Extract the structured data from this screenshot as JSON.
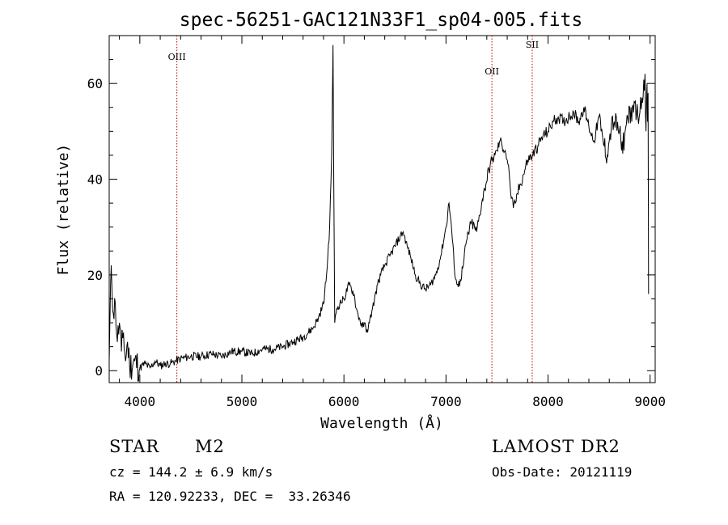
{
  "chart_data": {
    "type": "line",
    "title": "spec-56251-GAC121N33F1_sp04-005.fits",
    "xlabel": "Wavelength (Å)",
    "ylabel": "Flux (relative)",
    "xlim": [
      3700,
      9050
    ],
    "ylim": [
      -2.5,
      70
    ],
    "x_ticks": [
      4000,
      5000,
      6000,
      7000,
      8000,
      9000
    ],
    "y_ticks": [
      0,
      20,
      40,
      60
    ],
    "grid": false,
    "series": [
      {
        "x": [
          3700,
          3720,
          3740,
          3760,
          3780,
          3800,
          3820,
          3840,
          3860,
          3880,
          3900,
          3950,
          4000,
          4050,
          4100,
          4150,
          4200,
          4250,
          4300,
          4350,
          4400,
          4500,
          4600,
          4700,
          4800,
          4900,
          5000,
          5100,
          5200,
          5300,
          5400,
          5500,
          5600,
          5700,
          5750,
          5800,
          5830,
          5860,
          5880,
          5893,
          5900,
          5910,
          5930,
          5960,
          6000,
          6050,
          6100,
          6120,
          6150,
          6180,
          6200,
          6220,
          6250,
          6280,
          6300,
          6330,
          6360,
          6400,
          6450,
          6500,
          6550,
          6580,
          6620,
          6650,
          6700,
          6750,
          6800,
          6850,
          6900,
          6950,
          7000,
          7030,
          7050,
          7080,
          7100,
          7120,
          7140,
          7170,
          7200,
          7250,
          7300,
          7350,
          7380,
          7420,
          7450,
          7480,
          7500,
          7530,
          7550,
          7580,
          7600,
          7620,
          7640,
          7660,
          7680,
          7700,
          7730,
          7760,
          7800,
          7850,
          7900,
          7950,
          8000,
          8050,
          8100,
          8150,
          8200,
          8250,
          8300,
          8350,
          8400,
          8450,
          8500,
          8520,
          8550,
          8580,
          8600,
          8620,
          8650,
          8700,
          8720,
          8750,
          8780,
          8800,
          8820,
          8850,
          8880,
          8900,
          8920,
          8950,
          8960,
          8970,
          8975,
          8980,
          8985
        ],
        "y": [
          2,
          22,
          12,
          14,
          6,
          10,
          4,
          8,
          2,
          6,
          1,
          2,
          0.5,
          1.5,
          0.5,
          2,
          1,
          1.5,
          1.5,
          2,
          2.5,
          3,
          3,
          3.5,
          3,
          4,
          4,
          3.5,
          4.5,
          4.5,
          5,
          6,
          7,
          9,
          11,
          14,
          20,
          30,
          45,
          68,
          40,
          10,
          13,
          14,
          15,
          18,
          16,
          13,
          11,
          9,
          10,
          8,
          10,
          13,
          15,
          18,
          20,
          22,
          24,
          26,
          28,
          29,
          26,
          24,
          20,
          18,
          17,
          18,
          20,
          24,
          30,
          35,
          31,
          22,
          19,
          17.5,
          19,
          22,
          27,
          31,
          29,
          35,
          38,
          42,
          44,
          45,
          46,
          48,
          47,
          46,
          44,
          41,
          36,
          34,
          35,
          37,
          39,
          41,
          44,
          45,
          47,
          49,
          50,
          52,
          53,
          52,
          53,
          54,
          52,
          55,
          51,
          48,
          53,
          50,
          47,
          45,
          48,
          51,
          52,
          50,
          46,
          49,
          53,
          55,
          52,
          56,
          53,
          54,
          57,
          62,
          50,
          60,
          52,
          58,
          16
        ]
      }
    ],
    "annotations": [
      {
        "x": 4363,
        "label": "OIII"
      },
      {
        "x": 7450,
        "label": "OII"
      },
      {
        "x": 7845,
        "label": "SII"
      }
    ]
  },
  "info": {
    "class": "STAR",
    "subclass": "M2",
    "survey": "LAMOST DR2",
    "cz": "cz = 144.2 ± 6.9 km/s",
    "obs_date": "Obs-Date: 20121119",
    "radec": "RA = 120.92233, DEC =  33.26346"
  }
}
